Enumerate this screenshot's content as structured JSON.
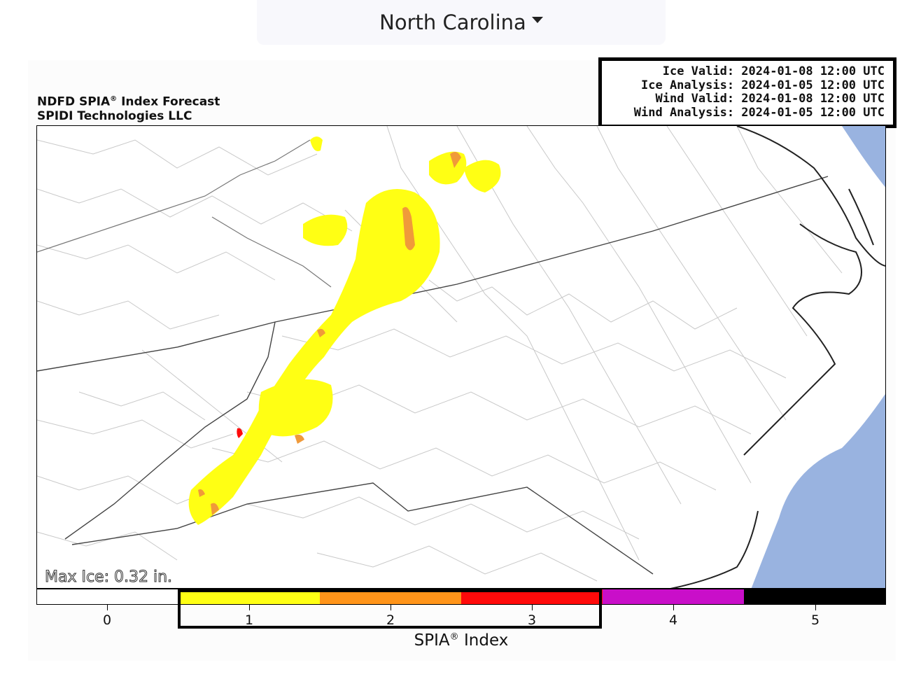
{
  "state_selector": {
    "label": "North Carolina"
  },
  "title": {
    "line1": "NDFD SPIA",
    "line1_rest": " Index Forecast",
    "reg": "®",
    "line2": "SPIDI Technologies LLC"
  },
  "valid": {
    "ice_valid": "Ice Valid: 2024-01-08 12:00 UTC",
    "ice_analysis": "Ice Analysis: 2024-01-05 12:00 UTC",
    "wind_valid": "Wind Valid: 2024-01-08 12:00 UTC",
    "wind_analysis": "Wind Analysis: 2024-01-05 12:00 UTC"
  },
  "max_ice": "Max Ice: 0.32 in.",
  "colorbar": {
    "label": "SPIA",
    "label_rest": " Index",
    "reg": "®",
    "ticks": [
      "0",
      "1",
      "2",
      "3",
      "4",
      "5"
    ],
    "colors": [
      "#ffffff",
      "#ffff14",
      "#ff9419",
      "#ff0a0a",
      "#c90fc9",
      "#000000"
    ]
  },
  "map": {
    "ocean_color": "#99b3e0",
    "ice_colors": {
      "1": "#ffff14",
      "2": "#f09a3a",
      "3": "#ff0a0a"
    }
  }
}
